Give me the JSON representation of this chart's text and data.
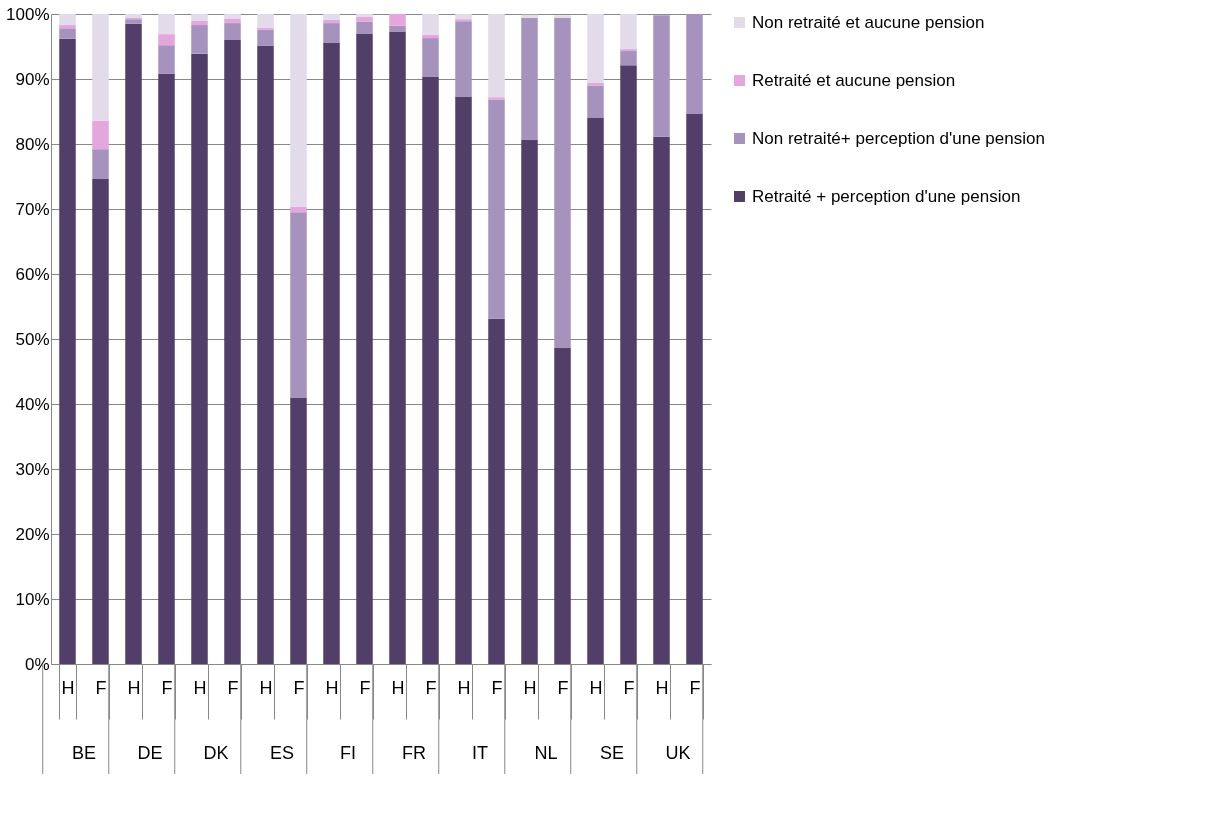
{
  "chart_data": {
    "type": "bar",
    "stacked": true,
    "categories": [
      "H",
      "F",
      "H",
      "F",
      "H",
      "F",
      "H",
      "F",
      "H",
      "F",
      "H",
      "F",
      "H",
      "F",
      "H",
      "F",
      "H",
      "F",
      "H",
      "F"
    ],
    "annotations": [
      "BE",
      "DE",
      "DK",
      "ES",
      "FI",
      "FR",
      "IT",
      "NL",
      "SE",
      "UK"
    ],
    "series": [
      {
        "name": "Retraité + perception d'une pension",
        "color": "#513f69",
        "values": [
          96.2,
          74.7,
          98.5,
          90.8,
          93.9,
          96.0,
          95.1,
          41.0,
          95.6,
          97.0,
          97.3,
          90.4,
          87.3,
          53.1,
          80.7,
          48.7,
          84.0,
          92.1,
          81.1,
          84.7
        ]
      },
      {
        "name": "Non retraité+ perception d'une pension",
        "color": "#a593bd",
        "values": [
          1.6,
          4.5,
          0.7,
          4.4,
          4.4,
          2.6,
          2.5,
          28.5,
          3.0,
          1.8,
          0.9,
          5.9,
          11.6,
          33.7,
          18.7,
          50.7,
          5.0,
          2.2,
          18.7,
          15.3
        ]
      },
      {
        "name": "Retraité et aucune pension",
        "color": "#e5a5dd",
        "values": [
          0.5,
          4.4,
          0.2,
          1.7,
          0.7,
          0.7,
          0.3,
          0.8,
          0.5,
          0.8,
          1.8,
          0.5,
          0.3,
          0.4,
          null,
          null,
          0.4,
          0.3,
          0,
          0
        ]
      },
      {
        "name": "Non retraité et aucune pension",
        "color": "#e1dbea",
        "values": [
          1.7,
          16.4,
          0.6,
          3.1,
          1.0,
          0.7,
          2.1,
          29.7,
          0.9,
          0.4,
          0,
          3.2,
          0.8,
          12.8,
          0.5,
          0.4,
          10.6,
          5.4,
          null,
          0
        ]
      }
    ],
    "ylim": [
      0,
      100
    ],
    "yticks": [
      {
        "value": 0,
        "label": "0%"
      },
      {
        "value": 10,
        "label": "10%"
      },
      {
        "value": 20,
        "label": "20%"
      },
      {
        "value": 30,
        "label": "30%"
      },
      {
        "value": 40,
        "label": "40%"
      },
      {
        "value": 50,
        "label": "50%"
      },
      {
        "value": 60,
        "label": "60%"
      },
      {
        "value": 70,
        "label": "70%"
      },
      {
        "value": 80,
        "label": "80%"
      },
      {
        "value": 90,
        "label": "90%"
      },
      {
        "value": 100,
        "label": "100%"
      }
    ],
    "grid": "y",
    "legend": "right"
  }
}
